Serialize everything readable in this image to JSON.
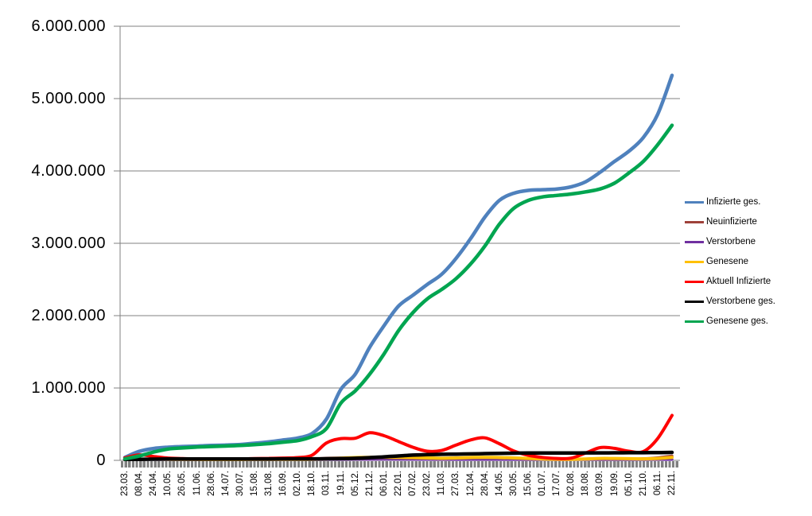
{
  "chart_data": {
    "type": "line",
    "title": "",
    "xlabel": "",
    "ylabel": "",
    "grid": true,
    "legend_position": "right",
    "y_min": 0,
    "y_max": 6000000,
    "y_step": 1000000,
    "y_tick_labels": [
      "0",
      "1.000.000",
      "2.000.000",
      "3.000.000",
      "4.000.000",
      "5.000.000",
      "6.000.000"
    ],
    "x_tick_labels": [
      "23.03.",
      "08.04.",
      "24.04.",
      "10.05.",
      "26.05.",
      "11.06.",
      "28.06.",
      "14.07.",
      "30.07.",
      "15.08.",
      "31.08.",
      "16.09.",
      "02.10.",
      "18.10.",
      "03.11.",
      "19.11.",
      "05.12.",
      "21.12.",
      "06.01.",
      "22.01.",
      "07.02.",
      "23.02.",
      "11.03.",
      "27.03.",
      "12.04.",
      "28.04.",
      "14.05.",
      "30.05.",
      "15.06.",
      "01.07.",
      "17.07.",
      "02.08.",
      "18.08.",
      "03.09.",
      "19.09.",
      "05.10.",
      "21.10.",
      "06.11.",
      "22.11."
    ],
    "series": [
      {
        "name": "Infizierte ges.",
        "color": "#4f81bd",
        "stroke_width": 4.5,
        "values": [
          30000,
          113000,
          153000,
          170000,
          180000,
          186000,
          194000,
          200000,
          208000,
          225000,
          245000,
          270000,
          298000,
          360000,
          560000,
          970000,
          1180000,
          1550000,
          1850000,
          2120000,
          2270000,
          2420000,
          2560000,
          2780000,
          3050000,
          3350000,
          3580000,
          3680000,
          3720000,
          3730000,
          3740000,
          3770000,
          3840000,
          3970000,
          4120000,
          4260000,
          4450000,
          4770000,
          5310000
        ]
      },
      {
        "name": "Neuinfizierte",
        "color": "#9e413a",
        "stroke_width": 3.5,
        "values": [
          4000,
          6000,
          3000,
          1000,
          800,
          500,
          500,
          500,
          800,
          1200,
          1500,
          2000,
          3000,
          7000,
          19000,
          22000,
          25000,
          30000,
          22000,
          17000,
          12000,
          8000,
          12000,
          18000,
          25000,
          24000,
          17000,
          9000,
          4000,
          2000,
          1500,
          3000,
          9000,
          13000,
          10000,
          8000,
          12000,
          25000,
          50000
        ]
      },
      {
        "name": "Verstorbene",
        "color": "#7030a0",
        "stroke_width": 3.5,
        "values": [
          300,
          900,
          1000,
          700,
          400,
          300,
          200,
          150,
          150,
          150,
          150,
          150,
          200,
          300,
          600,
          1500,
          2500,
          3500,
          4000,
          3800,
          3000,
          2000,
          1200,
          900,
          1000,
          1200,
          1000,
          700,
          400,
          300,
          150,
          150,
          200,
          300,
          400,
          400,
          500,
          800,
          1500
        ]
      },
      {
        "name": "Genesene",
        "color": "#ffc000",
        "stroke_width": 4,
        "values": [
          2000,
          4000,
          5000,
          4000,
          3000,
          2000,
          1200,
          1000,
          1200,
          1800,
          2000,
          2200,
          2800,
          4500,
          10000,
          20000,
          28000,
          30000,
          32000,
          30000,
          28000,
          22000,
          18000,
          22000,
          28000,
          30000,
          28000,
          22000,
          15000,
          8000,
          4000,
          3000,
          8000,
          15000,
          15000,
          12000,
          10000,
          15000,
          30000
        ]
      },
      {
        "name": "Aktuell Infizierte",
        "color": "#ff0000",
        "stroke_width": 4,
        "values": [
          22000,
          65000,
          42000,
          21000,
          13000,
          9000,
          7000,
          6500,
          8500,
          14000,
          17000,
          21000,
          27000,
          60000,
          230000,
          290000,
          295000,
          370000,
          330000,
          250000,
          170000,
          115000,
          125000,
          200000,
          270000,
          300000,
          220000,
          120000,
          60000,
          30000,
          15000,
          20000,
          90000,
          165000,
          155000,
          115000,
          110000,
          290000,
          610000
        ]
      },
      {
        "name": "Verstorbene ges.",
        "color": "#000000",
        "stroke_width": 4.5,
        "values": [
          500,
          2200,
          5600,
          7500,
          8400,
          8800,
          9000,
          9100,
          9200,
          9250,
          9300,
          9400,
          9500,
          9800,
          10500,
          13000,
          18000,
          26000,
          37000,
          50000,
          61000,
          68000,
          72000,
          75000,
          78000,
          82000,
          86000,
          88000,
          90000,
          90500,
          91000,
          91500,
          91800,
          92200,
          93000,
          94000,
          95000,
          96500,
          99000
        ]
      },
      {
        "name": "Genesene ges.",
        "color": "#00a550",
        "stroke_width": 4.5,
        "values": [
          10000,
          50000,
          103000,
          145000,
          160000,
          172000,
          180000,
          187000,
          194000,
          205000,
          220000,
          241000,
          262000,
          318000,
          430000,
          780000,
          950000,
          1180000,
          1460000,
          1780000,
          2030000,
          2220000,
          2350000,
          2500000,
          2700000,
          2950000,
          3250000,
          3470000,
          3580000,
          3630000,
          3650000,
          3670000,
          3700000,
          3740000,
          3820000,
          3960000,
          4120000,
          4350000,
          4620000
        ]
      }
    ]
  },
  "colors": {
    "background": "#ffffff",
    "axis": "#808080",
    "gridline": "#808080",
    "tick_band": "#808080",
    "text": "#000000"
  }
}
